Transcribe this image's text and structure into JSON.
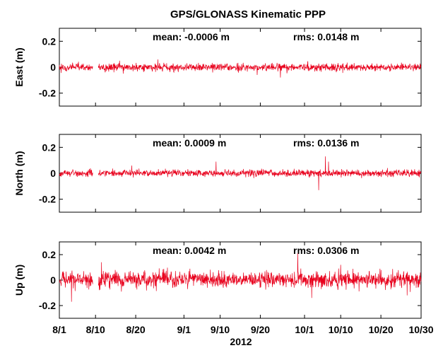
{
  "chart_data": {
    "type": "line",
    "title": "GPS/GLONASS Kinematic PPP",
    "xlabel": "2012",
    "x_tick_labels": [
      "8/1",
      "8/10",
      "8/20",
      "9/1",
      "9/10",
      "9/20",
      "10/1",
      "10/10",
      "10/20",
      "10/30"
    ],
    "x_tick_days": [
      0,
      9,
      19,
      31,
      40,
      50,
      61,
      70,
      80,
      90
    ],
    "xlim_days": [
      0,
      90
    ],
    "y_tick_labels": [
      "0.2",
      "0",
      "-0.2"
    ],
    "y_ticks": [
      0.2,
      0,
      -0.2
    ],
    "ylim": [
      -0.3,
      0.3
    ],
    "line_color": "#e8001c",
    "grid": false,
    "panels": [
      {
        "name": "East",
        "ylabel": "East (m)",
        "mean_label": "mean: -0.0006 m",
        "rms_label": "rms:  0.0148 m",
        "mean": -0.0006,
        "rms": 0.0148,
        "gaps": [
          [
            8.3,
            9.7
          ]
        ],
        "spikes": [
          [
            55.0,
            -0.08
          ],
          [
            49.2,
            -0.06
          ],
          [
            24.5,
            0.06
          ],
          [
            15.0,
            0.05
          ]
        ]
      },
      {
        "name": "North",
        "ylabel": "North (m)",
        "mean_label": "mean:  0.0009 m",
        "rms_label": "rms:  0.0136 m",
        "mean": 0.0009,
        "rms": 0.0136,
        "gaps": [
          [
            8.3,
            9.7
          ]
        ],
        "spikes": [
          [
            66.2,
            0.13
          ],
          [
            67.0,
            0.09
          ],
          [
            64.5,
            -0.13
          ],
          [
            39.0,
            0.09
          ],
          [
            18.0,
            0.06
          ]
        ]
      },
      {
        "name": "Up",
        "ylabel": "Up (m)",
        "mean_label": "mean:  0.0042 m",
        "rms_label": "rms:  0.0306 m",
        "mean": 0.0042,
        "rms": 0.0306,
        "gaps": [
          [
            8.3,
            9.7
          ]
        ],
        "spikes": [
          [
            59.3,
            0.21
          ],
          [
            3.0,
            -0.17
          ],
          [
            62.8,
            -0.14
          ],
          [
            10.5,
            0.14
          ],
          [
            86.5,
            -0.12
          ],
          [
            70.0,
            0.12
          ]
        ]
      }
    ]
  }
}
